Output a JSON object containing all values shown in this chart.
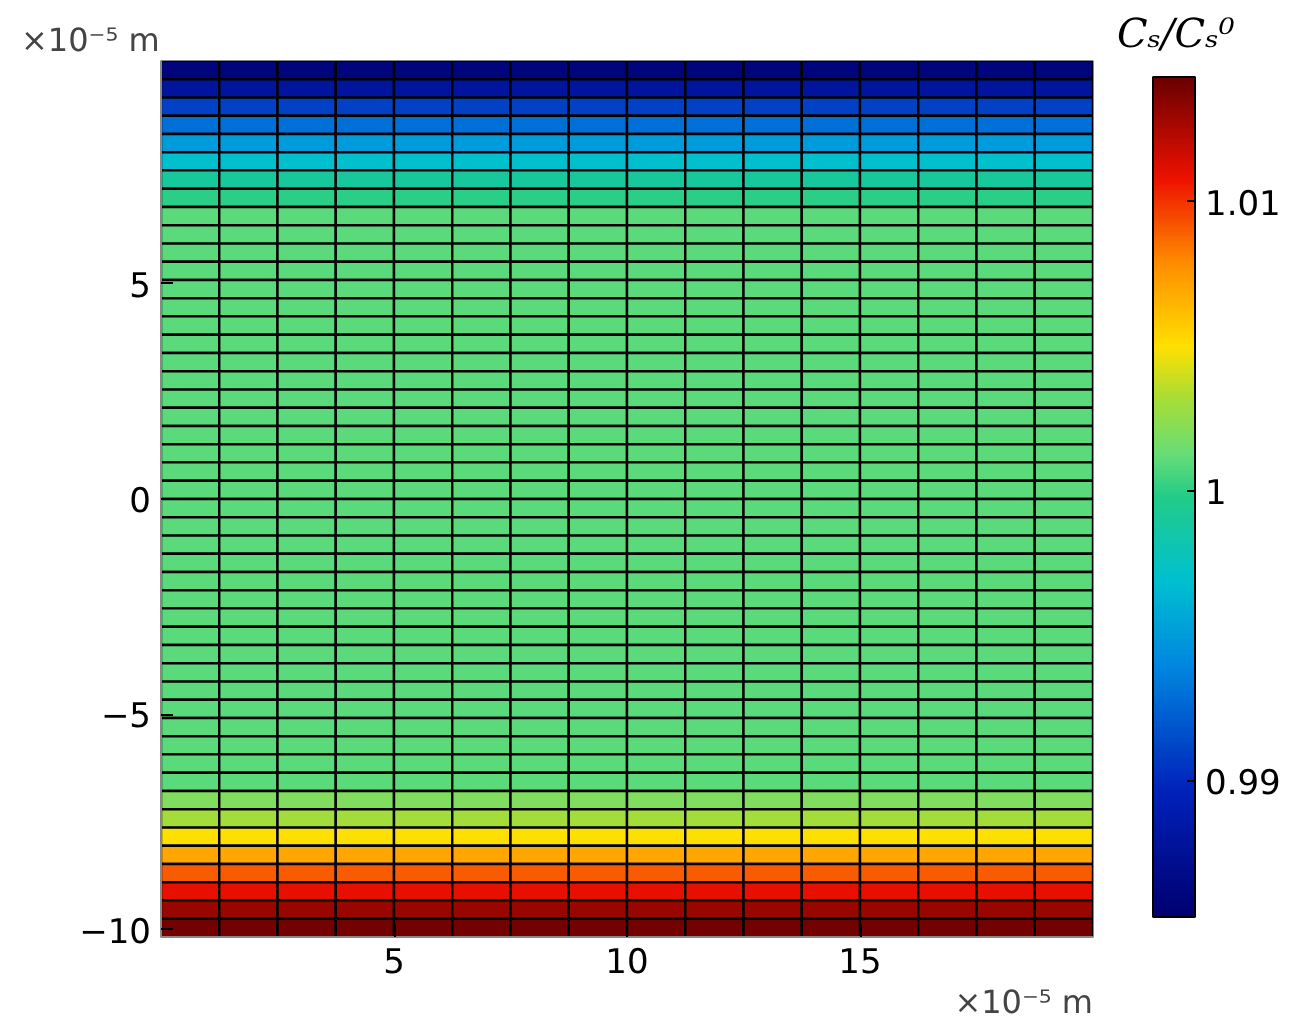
{
  "chart_data": {
    "type": "heatmap",
    "xlabel": "×10⁻⁵ m",
    "ylabel": "×10⁻⁵ m",
    "clabel": "Cₛ/Cₛ⁰",
    "x": [
      0.625,
      1.875,
      3.125,
      4.375,
      5.625,
      6.875,
      8.125,
      9.375,
      10.625,
      11.875,
      13.125,
      14.375,
      15.625,
      16.875,
      18.125,
      19.375
    ],
    "y": [
      9.96,
      9.53,
      9.11,
      8.69,
      8.26,
      7.84,
      7.42,
      6.99,
      6.57,
      6.14,
      5.72,
      5.3,
      4.87,
      4.45,
      4.03,
      3.6,
      3.18,
      2.75,
      2.33,
      1.91,
      1.48,
      1.06,
      0.64,
      0.21,
      -0.21,
      -0.64,
      -1.06,
      -1.48,
      -1.91,
      -2.33,
      -2.75,
      -3.18,
      -3.6,
      -4.03,
      -4.45,
      -4.87,
      -5.3,
      -5.72,
      -6.14,
      -6.57,
      -6.99,
      -7.42,
      -7.84,
      -8.26,
      -8.69,
      -9.11,
      -9.53,
      -9.96
    ],
    "cells": [
      [
        0.986,
        0.986,
        0.986,
        0.986,
        0.986,
        0.986,
        0.986,
        0.986,
        0.986,
        0.986,
        0.986,
        0.986,
        0.986,
        0.986,
        0.986,
        0.986
      ],
      [
        0.988,
        0.988,
        0.988,
        0.988,
        0.988,
        0.988,
        0.988,
        0.988,
        0.988,
        0.988,
        0.988,
        0.988,
        0.988,
        0.988,
        0.988,
        0.988
      ],
      [
        0.991,
        0.991,
        0.991,
        0.991,
        0.991,
        0.991,
        0.991,
        0.991,
        0.991,
        0.991,
        0.991,
        0.991,
        0.991,
        0.991,
        0.991,
        0.991
      ],
      [
        0.993,
        0.993,
        0.993,
        0.993,
        0.993,
        0.993,
        0.993,
        0.993,
        0.993,
        0.993,
        0.993,
        0.993,
        0.993,
        0.993,
        0.993,
        0.993
      ],
      [
        0.995,
        0.995,
        0.995,
        0.995,
        0.995,
        0.995,
        0.995,
        0.995,
        0.995,
        0.995,
        0.995,
        0.995,
        0.995,
        0.995,
        0.995,
        0.995
      ],
      [
        0.997,
        0.997,
        0.997,
        0.997,
        0.997,
        0.997,
        0.997,
        0.997,
        0.997,
        0.997,
        0.997,
        0.997,
        0.997,
        0.997,
        0.997,
        0.997
      ],
      [
        0.999,
        0.999,
        0.999,
        0.999,
        0.999,
        0.999,
        0.999,
        0.999,
        0.999,
        0.999,
        0.999,
        0.999,
        0.999,
        0.999,
        0.999,
        0.999
      ],
      [
        1.0,
        1.0,
        1.0,
        1.0,
        1.0,
        1.0,
        1.0,
        1.0,
        1.0,
        1.0,
        1.0,
        1.0,
        1.0,
        1.0,
        1.0,
        1.0
      ],
      [
        1.001,
        1.001,
        1.001,
        1.001,
        1.001,
        1.001,
        1.001,
        1.001,
        1.001,
        1.001,
        1.001,
        1.001,
        1.001,
        1.001,
        1.001,
        1.001
      ],
      [
        1.001,
        1.001,
        1.001,
        1.001,
        1.001,
        1.001,
        1.001,
        1.001,
        1.001,
        1.001,
        1.001,
        1.001,
        1.001,
        1.001,
        1.001,
        1.001
      ],
      [
        1.001,
        1.001,
        1.001,
        1.001,
        1.001,
        1.001,
        1.001,
        1.001,
        1.001,
        1.001,
        1.001,
        1.001,
        1.001,
        1.001,
        1.001,
        1.001
      ],
      [
        1.001,
        1.001,
        1.001,
        1.001,
        1.001,
        1.001,
        1.001,
        1.001,
        1.001,
        1.001,
        1.001,
        1.001,
        1.001,
        1.001,
        1.001,
        1.001
      ],
      [
        1.001,
        1.001,
        1.001,
        1.001,
        1.001,
        1.001,
        1.001,
        1.001,
        1.001,
        1.001,
        1.001,
        1.001,
        1.001,
        1.001,
        1.001,
        1.001
      ],
      [
        1.001,
        1.001,
        1.001,
        1.001,
        1.001,
        1.001,
        1.001,
        1.001,
        1.001,
        1.001,
        1.001,
        1.001,
        1.001,
        1.001,
        1.001,
        1.001
      ],
      [
        1.001,
        1.001,
        1.001,
        1.001,
        1.001,
        1.001,
        1.001,
        1.001,
        1.001,
        1.001,
        1.001,
        1.001,
        1.001,
        1.001,
        1.001,
        1.001
      ],
      [
        1.001,
        1.001,
        1.001,
        1.001,
        1.001,
        1.001,
        1.001,
        1.001,
        1.001,
        1.001,
        1.001,
        1.001,
        1.001,
        1.001,
        1.001,
        1.001
      ],
      [
        1.001,
        1.001,
        1.001,
        1.001,
        1.001,
        1.001,
        1.001,
        1.001,
        1.001,
        1.001,
        1.001,
        1.001,
        1.001,
        1.001,
        1.001,
        1.001
      ],
      [
        1.001,
        1.001,
        1.001,
        1.001,
        1.001,
        1.001,
        1.001,
        1.001,
        1.001,
        1.001,
        1.001,
        1.001,
        1.001,
        1.001,
        1.001,
        1.001
      ],
      [
        1.001,
        1.001,
        1.001,
        1.001,
        1.001,
        1.001,
        1.001,
        1.001,
        1.001,
        1.001,
        1.001,
        1.001,
        1.001,
        1.001,
        1.001,
        1.001
      ],
      [
        1.001,
        1.001,
        1.001,
        1.001,
        1.001,
        1.001,
        1.001,
        1.001,
        1.001,
        1.001,
        1.001,
        1.001,
        1.001,
        1.001,
        1.001,
        1.001
      ],
      [
        1.001,
        1.001,
        1.001,
        1.001,
        1.001,
        1.001,
        1.001,
        1.001,
        1.001,
        1.001,
        1.001,
        1.001,
        1.001,
        1.001,
        1.001,
        1.001
      ],
      [
        1.001,
        1.001,
        1.001,
        1.001,
        1.001,
        1.001,
        1.001,
        1.001,
        1.001,
        1.001,
        1.001,
        1.001,
        1.001,
        1.001,
        1.001,
        1.001
      ],
      [
        1.001,
        1.001,
        1.001,
        1.001,
        1.001,
        1.001,
        1.001,
        1.001,
        1.001,
        1.001,
        1.001,
        1.001,
        1.001,
        1.001,
        1.001,
        1.001
      ],
      [
        1.001,
        1.001,
        1.001,
        1.001,
        1.001,
        1.001,
        1.001,
        1.001,
        1.001,
        1.001,
        1.001,
        1.001,
        1.001,
        1.001,
        1.001,
        1.001
      ],
      [
        1.001,
        1.001,
        1.001,
        1.001,
        1.001,
        1.001,
        1.001,
        1.001,
        1.001,
        1.001,
        1.001,
        1.001,
        1.001,
        1.001,
        1.001,
        1.001
      ],
      [
        1.001,
        1.001,
        1.001,
        1.001,
        1.001,
        1.001,
        1.001,
        1.001,
        1.001,
        1.001,
        1.001,
        1.001,
        1.001,
        1.001,
        1.001,
        1.001
      ],
      [
        1.001,
        1.001,
        1.001,
        1.001,
        1.001,
        1.001,
        1.001,
        1.001,
        1.001,
        1.001,
        1.001,
        1.001,
        1.001,
        1.001,
        1.001,
        1.001
      ],
      [
        1.001,
        1.001,
        1.001,
        1.001,
        1.001,
        1.001,
        1.001,
        1.001,
        1.001,
        1.001,
        1.001,
        1.001,
        1.001,
        1.001,
        1.001,
        1.001
      ],
      [
        1.001,
        1.001,
        1.001,
        1.001,
        1.001,
        1.001,
        1.001,
        1.001,
        1.001,
        1.001,
        1.001,
        1.001,
        1.001,
        1.001,
        1.001,
        1.001
      ],
      [
        1.001,
        1.001,
        1.001,
        1.001,
        1.001,
        1.001,
        1.001,
        1.001,
        1.001,
        1.001,
        1.001,
        1.001,
        1.001,
        1.001,
        1.001,
        1.001
      ],
      [
        1.001,
        1.001,
        1.001,
        1.001,
        1.001,
        1.001,
        1.001,
        1.001,
        1.001,
        1.001,
        1.001,
        1.001,
        1.001,
        1.001,
        1.001,
        1.001
      ],
      [
        1.001,
        1.001,
        1.001,
        1.001,
        1.001,
        1.001,
        1.001,
        1.001,
        1.001,
        1.001,
        1.001,
        1.001,
        1.001,
        1.001,
        1.001,
        1.001
      ],
      [
        1.001,
        1.001,
        1.001,
        1.001,
        1.001,
        1.001,
        1.001,
        1.001,
        1.001,
        1.001,
        1.001,
        1.001,
        1.001,
        1.001,
        1.001,
        1.001
      ],
      [
        1.001,
        1.001,
        1.001,
        1.001,
        1.001,
        1.001,
        1.001,
        1.001,
        1.001,
        1.001,
        1.001,
        1.001,
        1.001,
        1.001,
        1.001,
        1.001
      ],
      [
        1.001,
        1.001,
        1.001,
        1.001,
        1.001,
        1.001,
        1.001,
        1.001,
        1.001,
        1.001,
        1.001,
        1.001,
        1.001,
        1.001,
        1.001,
        1.001
      ],
      [
        1.001,
        1.001,
        1.001,
        1.001,
        1.001,
        1.001,
        1.001,
        1.001,
        1.001,
        1.001,
        1.001,
        1.001,
        1.001,
        1.001,
        1.001,
        1.001
      ],
      [
        1.001,
        1.001,
        1.001,
        1.001,
        1.001,
        1.001,
        1.001,
        1.001,
        1.001,
        1.001,
        1.001,
        1.001,
        1.001,
        1.001,
        1.001,
        1.001
      ],
      [
        1.001,
        1.001,
        1.001,
        1.001,
        1.001,
        1.001,
        1.001,
        1.001,
        1.001,
        1.001,
        1.001,
        1.001,
        1.001,
        1.001,
        1.001,
        1.001
      ],
      [
        1.001,
        1.001,
        1.001,
        1.001,
        1.001,
        1.001,
        1.001,
        1.001,
        1.001,
        1.001,
        1.001,
        1.001,
        1.001,
        1.001,
        1.001,
        1.001
      ],
      [
        1.001,
        1.001,
        1.001,
        1.001,
        1.001,
        1.001,
        1.001,
        1.001,
        1.001,
        1.001,
        1.001,
        1.001,
        1.001,
        1.001,
        1.001,
        1.001
      ],
      [
        1.002,
        1.002,
        1.002,
        1.002,
        1.002,
        1.002,
        1.002,
        1.002,
        1.002,
        1.002,
        1.002,
        1.002,
        1.002,
        1.002,
        1.002,
        1.002
      ],
      [
        1.003,
        1.003,
        1.003,
        1.003,
        1.003,
        1.003,
        1.003,
        1.003,
        1.003,
        1.003,
        1.003,
        1.003,
        1.003,
        1.003,
        1.003,
        1.003
      ],
      [
        1.005,
        1.005,
        1.005,
        1.005,
        1.005,
        1.005,
        1.005,
        1.005,
        1.005,
        1.005,
        1.005,
        1.005,
        1.005,
        1.005,
        1.005,
        1.005
      ],
      [
        1.007,
        1.007,
        1.007,
        1.007,
        1.007,
        1.007,
        1.007,
        1.007,
        1.007,
        1.007,
        1.007,
        1.007,
        1.007,
        1.007,
        1.007,
        1.007
      ],
      [
        1.009,
        1.009,
        1.009,
        1.009,
        1.009,
        1.009,
        1.009,
        1.009,
        1.009,
        1.009,
        1.009,
        1.009,
        1.009,
        1.009,
        1.009,
        1.009
      ],
      [
        1.011,
        1.011,
        1.011,
        1.011,
        1.011,
        1.011,
        1.011,
        1.011,
        1.011,
        1.011,
        1.011,
        1.011,
        1.011,
        1.011,
        1.011,
        1.011
      ],
      [
        1.013,
        1.013,
        1.013,
        1.013,
        1.013,
        1.013,
        1.013,
        1.013,
        1.013,
        1.013,
        1.013,
        1.013,
        1.013,
        1.013,
        1.013,
        1.013
      ],
      [
        1.014,
        1.014,
        1.014,
        1.014,
        1.014,
        1.014,
        1.014,
        1.014,
        1.014,
        1.014,
        1.014,
        1.014,
        1.014,
        1.014,
        1.014,
        1.014
      ]
    ],
    "xlim": [
      0,
      20
    ],
    "xticks": [
      5,
      10,
      15
    ],
    "ylim": [
      -10.17,
      10.17
    ],
    "yticks": [
      -10,
      -5,
      0,
      5
    ],
    "clim": [
      0.9853,
      1.0143
    ],
    "cticks": [
      0.99,
      1,
      1.01
    ]
  }
}
